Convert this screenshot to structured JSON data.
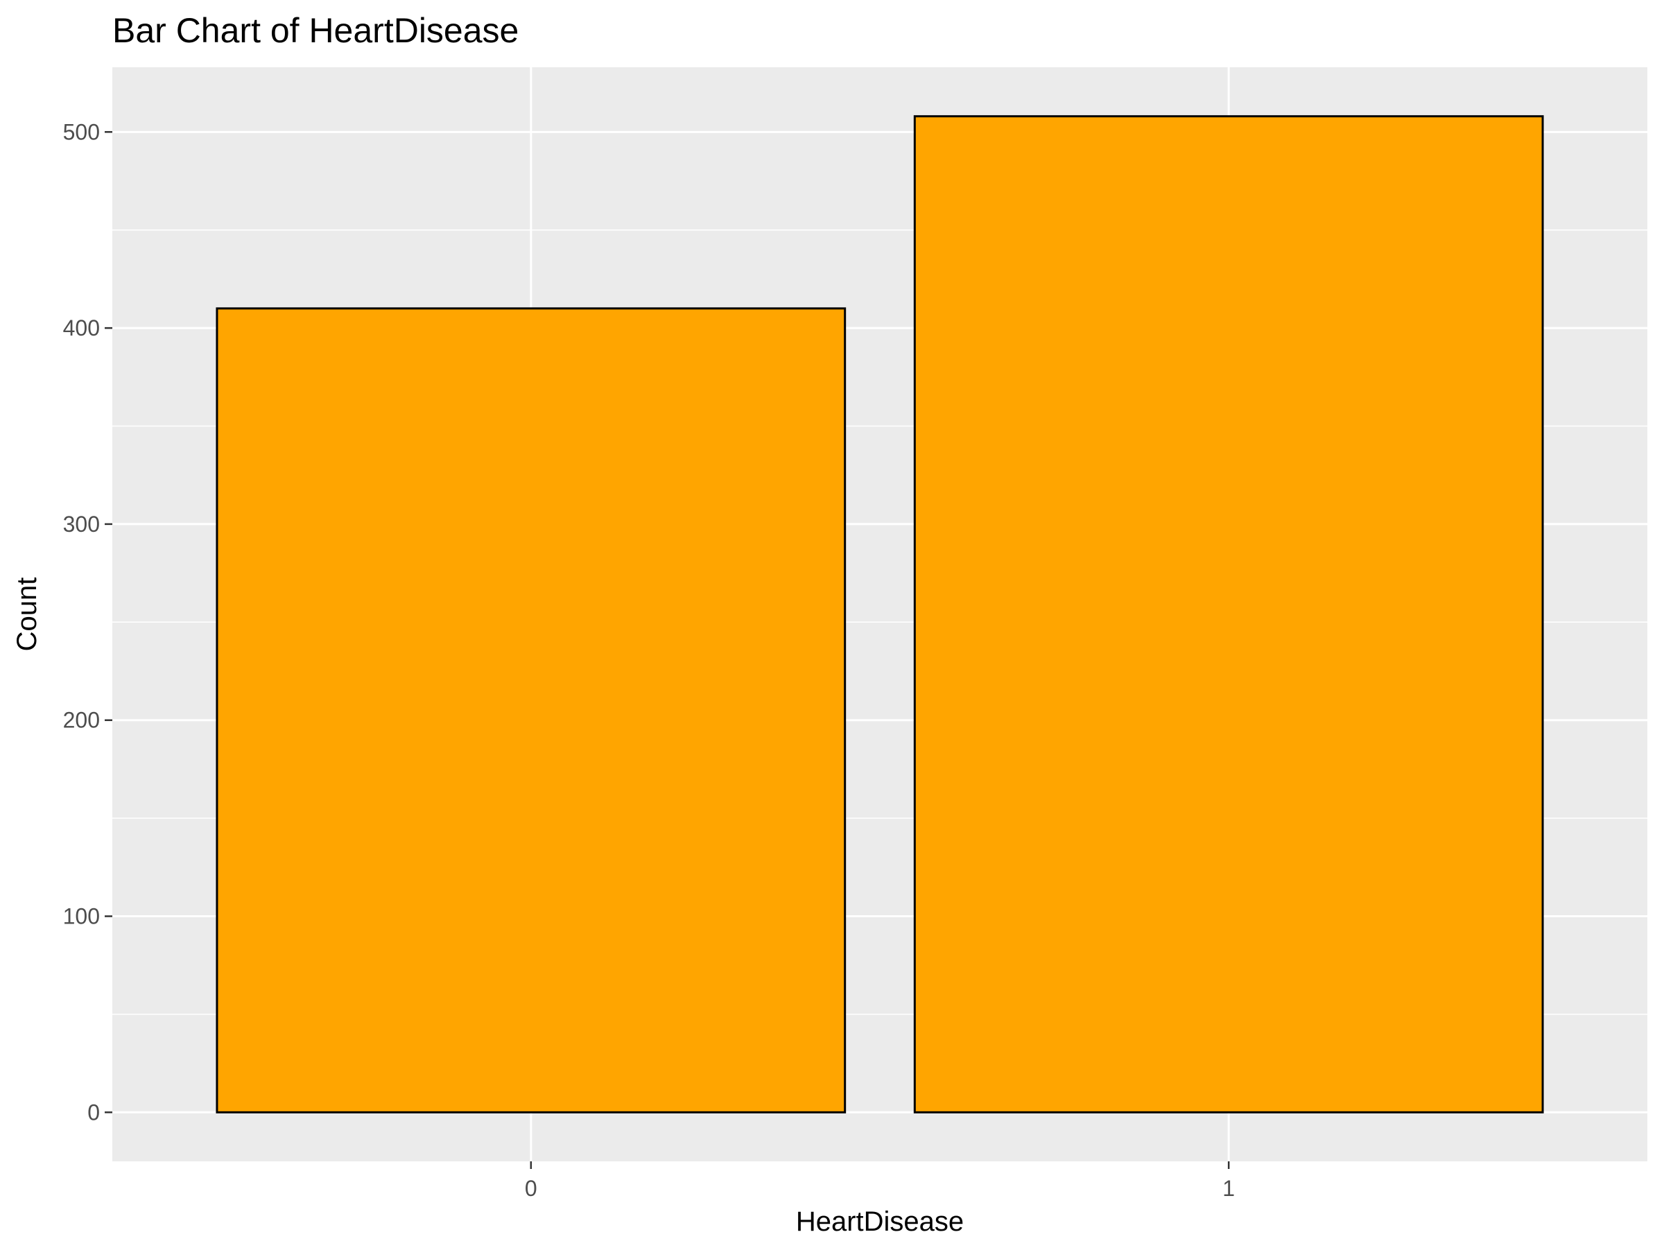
{
  "chart_data": {
    "type": "bar",
    "title": "Bar Chart of HeartDisease",
    "xlabel": "HeartDisease",
    "ylabel": "Count",
    "categories": [
      "0",
      "1"
    ],
    "values": [
      410,
      508
    ],
    "ylim": [
      -25,
      533
    ],
    "yticks": [
      0,
      100,
      200,
      300,
      400,
      500
    ],
    "grid": true,
    "legend": "none",
    "colors": {
      "bar_fill": "#ffa500",
      "bar_stroke": "#000000",
      "panel_background": "#ebebeb",
      "grid": "#ffffff"
    }
  }
}
